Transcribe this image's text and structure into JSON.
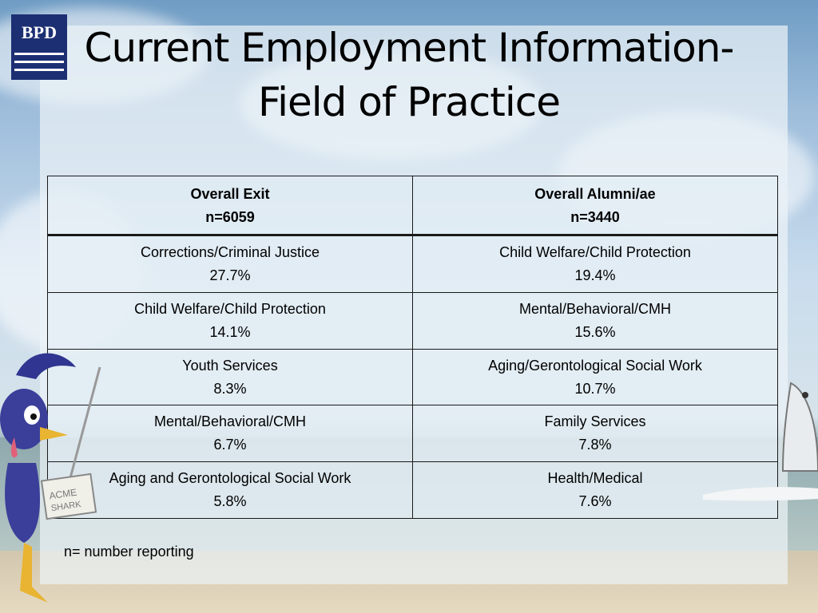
{
  "slide": {
    "title_line1": "Current Employment Information-",
    "title_line2": "Field of Practice",
    "logo_text": "BPD",
    "sign_text_line1": "ACME",
    "sign_text_line2": "SHARK",
    "note": "n= number reporting"
  },
  "table": {
    "columns": [
      {
        "label": "Overall Exit",
        "n": "n=6059"
      },
      {
        "label": "Overall Alumni/ae",
        "n": "n=3440"
      }
    ],
    "rows": [
      {
        "exit_field": "Corrections/Criminal Justice",
        "exit_pct": "27.7%",
        "alumni_field": "Child Welfare/Child Protection",
        "alumni_pct": "19.4%"
      },
      {
        "exit_field": "Child Welfare/Child Protection",
        "exit_pct": "14.1%",
        "alumni_field": "Mental/Behavioral/CMH",
        "alumni_pct": "15.6%"
      },
      {
        "exit_field": "Youth Services",
        "exit_pct": "8.3%",
        "alumni_field": "Aging/Gerontological Social Work",
        "alumni_pct": "10.7%"
      },
      {
        "exit_field": "Mental/Behavioral/CMH",
        "exit_pct": "6.7%",
        "alumni_field": "Family Services",
        "alumni_pct": "7.8%"
      },
      {
        "exit_field": "Aging and Gerontological Social Work",
        "exit_pct": "5.8%",
        "alumni_field": "Health/Medical",
        "alumni_pct": "7.6%"
      }
    ]
  },
  "colors": {
    "logo_bg": "#1c2f73",
    "bird_body": "#3b3f9a",
    "bird_beak": "#e8b431"
  }
}
